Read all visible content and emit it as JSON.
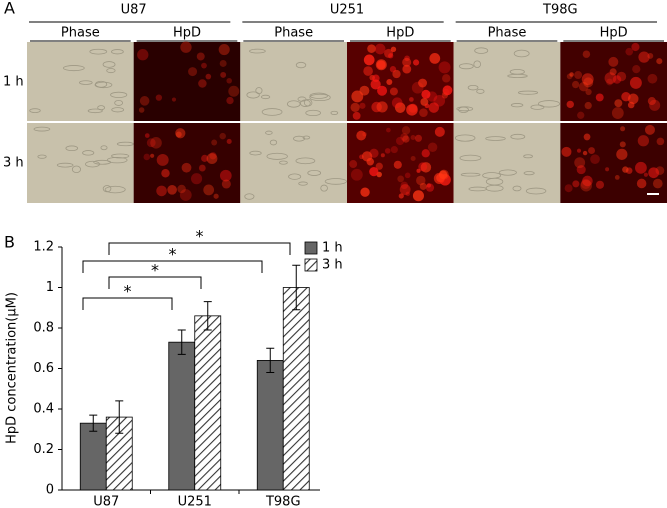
{
  "panel_a": {
    "label": "A",
    "groups": [
      {
        "name": "U87",
        "columns": [
          "Phase",
          "HpD"
        ]
      },
      {
        "name": "U251",
        "columns": [
          "Phase",
          "HpD"
        ]
      },
      {
        "name": "T98G",
        "columns": [
          "Phase",
          "HpD"
        ]
      }
    ],
    "rows": [
      "1 h",
      "3 h"
    ]
  },
  "chart_data": {
    "type": "bar",
    "panel_label": "B",
    "ylabel": "HpD concentration(μM)",
    "categories": [
      "U87",
      "U251",
      "T98G"
    ],
    "series": [
      {
        "name": "1 h",
        "color": "#666666",
        "pattern": "solid",
        "values": [
          0.33,
          0.73,
          0.64
        ],
        "errors": [
          0.04,
          0.06,
          0.06
        ]
      },
      {
        "name": "3 h",
        "color": "#ffffff",
        "pattern": "hatch",
        "values": [
          0.36,
          0.86,
          1.0
        ],
        "errors": [
          0.08,
          0.07,
          0.11
        ]
      }
    ],
    "ylim": [
      0,
      1.2
    ],
    "yticks": [
      0,
      0.2,
      0.4,
      0.6,
      0.8,
      1,
      1.2
    ],
    "annotations": [
      "*",
      "*",
      "*",
      "*"
    ]
  }
}
